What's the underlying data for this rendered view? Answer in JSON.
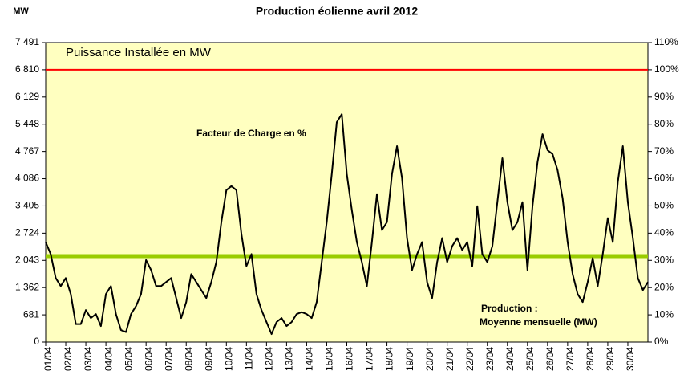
{
  "chart_data": {
    "type": "line",
    "title": "Production éolienne avril 2012",
    "y_label": "MW",
    "annotation": "Facteur de Charge en %",
    "categories": [
      "01/04",
      null,
      null,
      null,
      "02/04",
      null,
      null,
      null,
      "03/04",
      null,
      null,
      null,
      "04/04",
      null,
      null,
      null,
      "05/04",
      null,
      null,
      null,
      "06/04",
      null,
      null,
      null,
      "07/04",
      null,
      null,
      null,
      "08/04",
      null,
      null,
      null,
      "09/04",
      null,
      null,
      null,
      "10/04",
      null,
      null,
      null,
      "11/04",
      null,
      null,
      null,
      "12/04",
      null,
      null,
      null,
      "13/04",
      null,
      null,
      null,
      "14/04",
      null,
      null,
      null,
      "15/04",
      null,
      null,
      null,
      "16/04",
      null,
      null,
      null,
      "17/04",
      null,
      null,
      null,
      "18/04",
      null,
      null,
      null,
      "19/04",
      null,
      null,
      null,
      "20/04",
      null,
      null,
      null,
      "21/04",
      null,
      null,
      null,
      "22/04",
      null,
      null,
      null,
      "23/04",
      null,
      null,
      null,
      "24/04",
      null,
      null,
      null,
      "25/04",
      null,
      null,
      null,
      "26/04",
      null,
      null,
      null,
      "27/04",
      null,
      null,
      null,
      "28/04",
      null,
      null,
      null,
      "29/04",
      null,
      null,
      null,
      "30/04",
      null,
      null,
      null,
      null
    ],
    "values": [
      2500,
      2200,
      1600,
      1400,
      1600,
      1200,
      450,
      450,
      800,
      600,
      700,
      400,
      1200,
      1400,
      700,
      300,
      250,
      700,
      900,
      1200,
      2050,
      1800,
      1400,
      1400,
      1500,
      1600,
      1100,
      600,
      1000,
      1700,
      1500,
      1300,
      1100,
      1500,
      2000,
      3000,
      3800,
      3900,
      3800,
      2700,
      1900,
      2200,
      1200,
      800,
      500,
      200,
      500,
      600,
      400,
      500,
      700,
      750,
      700,
      600,
      1000,
      2000,
      3000,
      4200,
      5500,
      5700,
      4200,
      3300,
      2500,
      2000,
      1400,
      2500,
      3700,
      2800,
      3000,
      4200,
      4900,
      4100,
      2600,
      1800,
      2200,
      2500,
      1500,
      1100,
      2000,
      2600,
      2000,
      2400,
      2600,
      2300,
      2500,
      1900,
      3400,
      2200,
      2000,
      2400,
      3500,
      4600,
      3500,
      2800,
      3000,
      3500,
      1800,
      3400,
      4500,
      5200,
      4800,
      4700,
      4300,
      3600,
      2500,
      1700,
      1200,
      1000,
      1500,
      2100,
      1400,
      2200,
      3100,
      2500,
      4000,
      4900,
      3500,
      2600,
      1600,
      1300,
      1500
    ],
    "color": "#000000",
    "ylim": [
      0,
      7491
    ],
    "yticks": [
      0,
      681,
      {
        "value": 1362,
        "label": "1 362"
      },
      {
        "value": 2043,
        "label": "2 043"
      },
      {
        "value": 2724,
        "label": "2 724"
      },
      {
        "value": 3405,
        "label": "3 405"
      },
      {
        "value": 4086,
        "label": "4 086"
      },
      {
        "value": 4767,
        "label": "4 767"
      },
      {
        "value": 5448,
        "label": "5 448"
      },
      {
        "value": 6129,
        "label": "6 129"
      },
      {
        "value": 6810,
        "label": "6 810"
      },
      {
        "value": 7491,
        "label": "7 491"
      }
    ],
    "y2lim": [
      0,
      110
    ],
    "y2ticks": [
      {
        "value": 0,
        "label": "0%"
      },
      {
        "value": 10,
        "label": "10%"
      },
      {
        "value": 20,
        "label": "20%"
      },
      {
        "value": 30,
        "label": "30%"
      },
      {
        "value": 40,
        "label": "40%"
      },
      {
        "value": 50,
        "label": "50%"
      },
      {
        "value": 60,
        "label": "60%"
      },
      {
        "value": 70,
        "label": "70%"
      },
      {
        "value": 80,
        "label": "80%"
      },
      {
        "value": 90,
        "label": "90%"
      },
      {
        "value": 100,
        "label": "100%"
      },
      {
        "value": 110,
        "label": "110%"
      }
    ],
    "reference_lines": [
      {
        "label_lines": [
          "Puissance Installée en MW"
        ],
        "value": 6810,
        "color": "#ff0000"
      },
      {
        "label_lines": [
          "Production :",
          "Moyenne mensuelle (MW)"
        ],
        "value": 2150,
        "color": "#99cc00"
      }
    ],
    "background": "#ffffc0",
    "grid": false
  }
}
